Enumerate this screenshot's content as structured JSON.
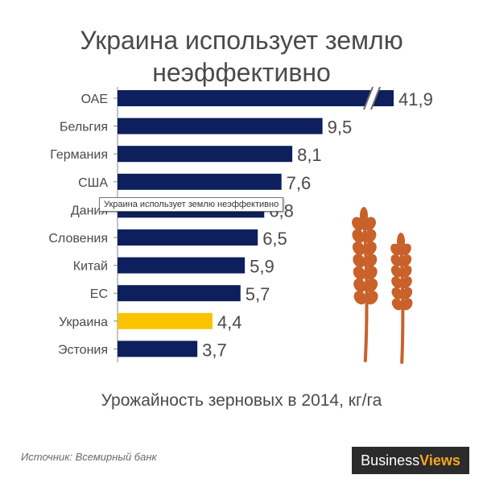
{
  "chart_data": {
    "type": "bar",
    "orientation": "horizontal",
    "title": "Украина использует землю неэффективно",
    "title_lines": [
      "Украина использует землю",
      "неэффективно"
    ],
    "xlabel": "Урожайность зерновых в 2014, кг/га",
    "categories": [
      "ОАЕ",
      "Бельгия",
      "Германия",
      "США",
      "Дания",
      "Словения",
      "Китай",
      "ЕС",
      "Украина",
      "Эстония"
    ],
    "values": [
      41.9,
      9.5,
      8.1,
      7.6,
      6.8,
      6.5,
      5.9,
      5.7,
      4.4,
      3.7
    ],
    "value_labels": [
      "41,9",
      "9,5",
      "8,1",
      "7,6",
      "6,8",
      "6,5",
      "5,9",
      "5,7",
      "4,4",
      "3,7"
    ],
    "highlight_category": "Украина",
    "axis_break_category": "ОАЕ",
    "grid": false,
    "legend": "none"
  },
  "colors": {
    "bar": "#0d1f5c",
    "highlight": "#f9c300",
    "text": "#4a4a4a",
    "axis": "#888888",
    "wheat": "#c8612a"
  },
  "source_text": "Источник: Всемирный банк",
  "brand": {
    "part1": "Business",
    "part2": "Views"
  },
  "tooltip_text": "Украина использует землю неэффективно",
  "icons": {
    "decoration": "wheat-icon"
  }
}
